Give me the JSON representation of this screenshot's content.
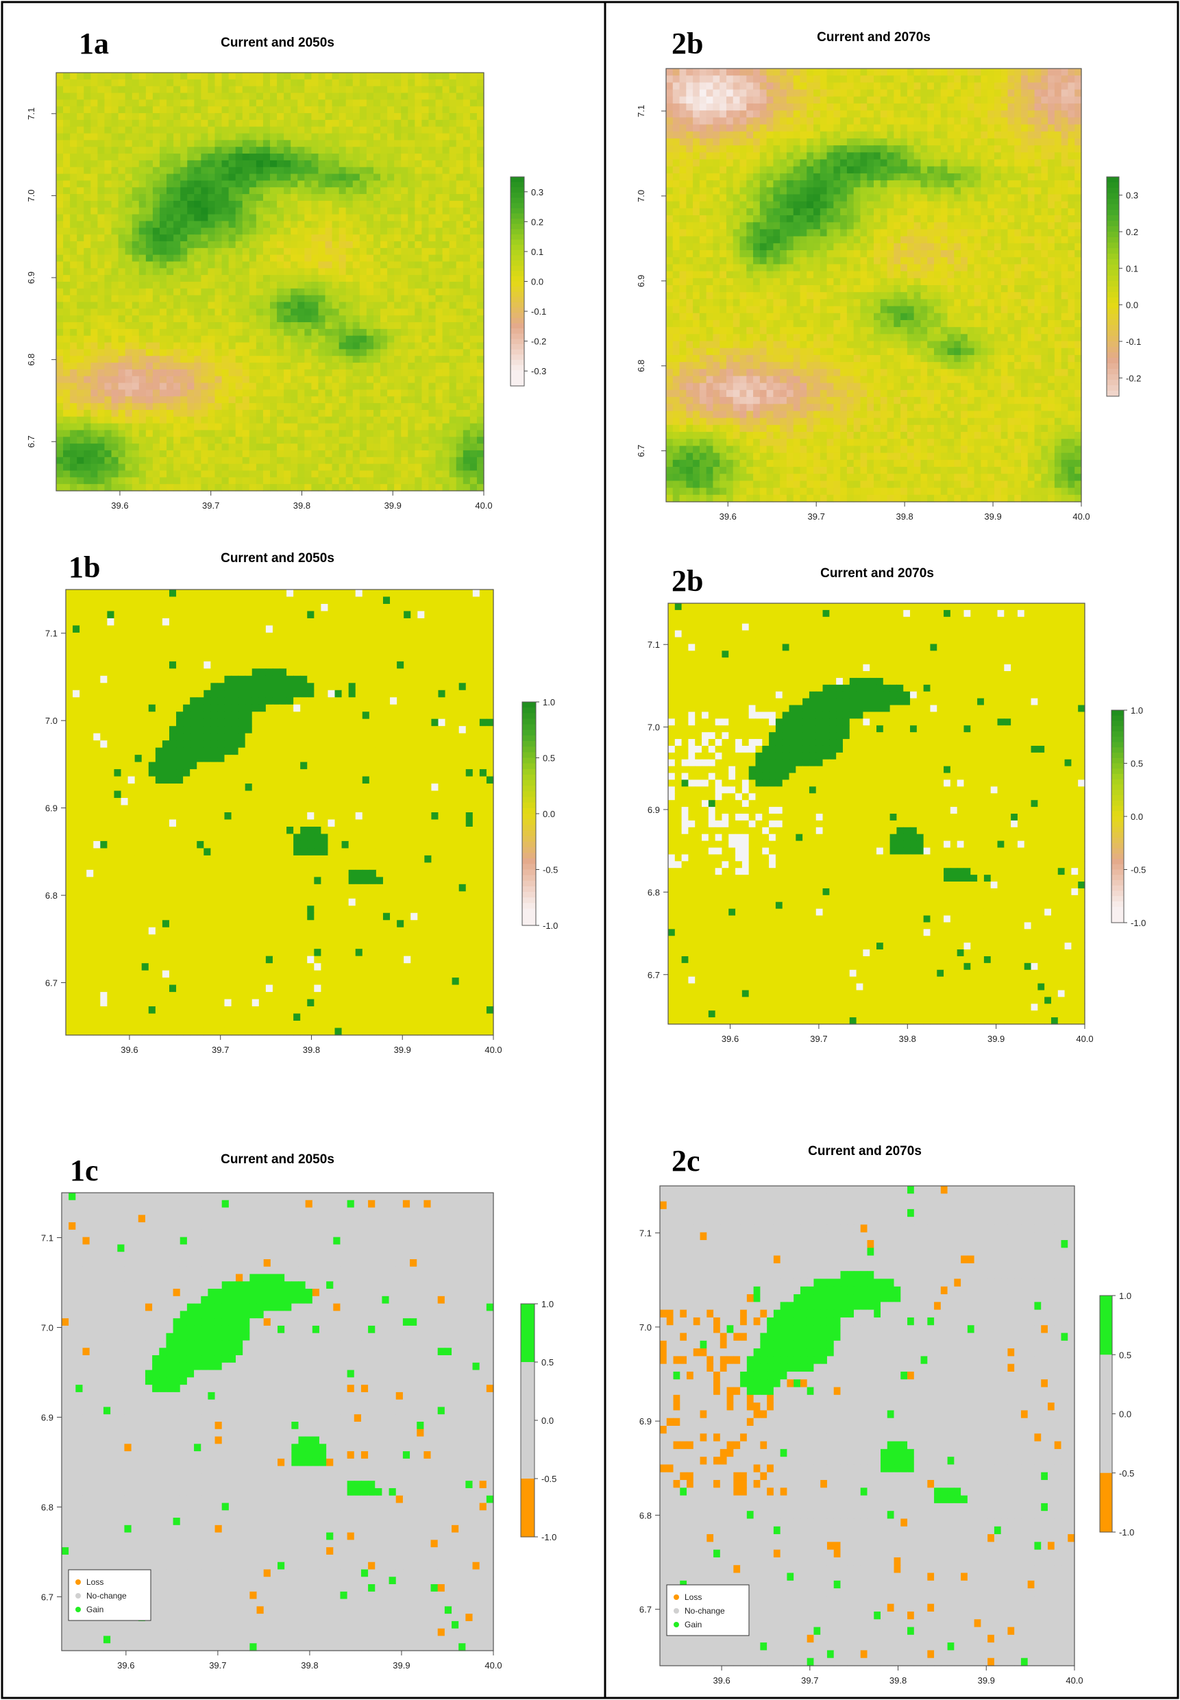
{
  "colors": {
    "panel_border": "#000000",
    "gain_dark": "#1e9a1e",
    "gain_bright": "#22ee22",
    "stable_yellow": "#e6e200",
    "loss_white": "#f4f4f4",
    "loss_orange": "#ff9900",
    "nochange_grey": "#d0d0d0"
  },
  "chart_data": [
    {
      "id": "1a",
      "type": "heatmap",
      "panel_label": "1a",
      "title": "Current and 2050s",
      "x_ticks": [
        "39.6",
        "39.7",
        "39.8",
        "39.9",
        "40.0"
      ],
      "y_ticks": [
        "6.7",
        "6.8",
        "6.9",
        "7.0",
        "7.1"
      ],
      "xlim": [
        39.53,
        40.0
      ],
      "ylim": [
        6.64,
        7.15
      ],
      "colorbar_ticks": [
        "0.3",
        "0.2",
        "0.1",
        "0.0",
        "-0.1",
        "-0.2",
        "-0.3"
      ],
      "colorbar_range": [
        -0.35,
        0.35
      ]
    },
    {
      "id": "2a",
      "type": "heatmap",
      "panel_label": "2b",
      "title": "Current and 2070s",
      "x_ticks": [
        "39.6",
        "39.7",
        "39.8",
        "39.9",
        "40.0"
      ],
      "y_ticks": [
        "6.7",
        "6.8",
        "6.9",
        "7.0",
        "7.1"
      ],
      "xlim": [
        39.53,
        40.0
      ],
      "ylim": [
        6.64,
        7.15
      ],
      "colorbar_ticks": [
        "0.3",
        "0.2",
        "0.1",
        "0.0",
        "-0.1",
        "-0.2"
      ],
      "colorbar_range": [
        -0.25,
        0.35
      ]
    },
    {
      "id": "1b",
      "type": "heatmap",
      "panel_label": "1b",
      "title": "Current and 2050s",
      "x_ticks": [
        "39.6",
        "39.7",
        "39.8",
        "39.9",
        "40.0"
      ],
      "y_ticks": [
        "6.7",
        "6.8",
        "6.9",
        "7.0",
        "7.1"
      ],
      "xlim": [
        39.53,
        40.0
      ],
      "ylim": [
        6.64,
        7.15
      ],
      "colorbar_ticks": [
        "1.0",
        "0.5",
        "0.0",
        "-0.5",
        "-1.0"
      ],
      "colorbar_range": [
        -1,
        1
      ]
    },
    {
      "id": "2b",
      "type": "heatmap",
      "panel_label": "2b",
      "title": "Current and 2070s",
      "x_ticks": [
        "39.6",
        "39.7",
        "39.8",
        "39.9",
        "40.0"
      ],
      "y_ticks": [
        "6.7",
        "6.8",
        "6.9",
        "7.0",
        "7.1"
      ],
      "xlim": [
        39.53,
        40.0
      ],
      "ylim": [
        6.64,
        7.15
      ],
      "colorbar_ticks": [
        "1.0",
        "0.5",
        "0.0",
        "-0.5",
        "-1.0"
      ],
      "colorbar_range": [
        -1,
        1
      ]
    },
    {
      "id": "1c",
      "type": "heatmap",
      "panel_label": "1c",
      "title": "Current and 2050s",
      "x_ticks": [
        "39.6",
        "39.7",
        "39.8",
        "39.9",
        "40.0"
      ],
      "y_ticks": [
        "6.7",
        "6.8",
        "6.9",
        "7.0",
        "7.1"
      ],
      "xlim": [
        39.53,
        40.0
      ],
      "ylim": [
        6.64,
        7.15
      ],
      "colorbar_ticks": [
        "1.0",
        "0.5",
        "0.0",
        "-0.5",
        "-1.0"
      ],
      "colorbar_range": [
        -1,
        1
      ],
      "legend": [
        "Loss",
        "No-change",
        "Gain"
      ],
      "legend_placement": "bottom-left"
    },
    {
      "id": "2c",
      "type": "heatmap",
      "panel_label": "2c",
      "title": "Current and 2070s",
      "x_ticks": [
        "39.6",
        "39.7",
        "39.8",
        "39.9",
        "40.0"
      ],
      "y_ticks": [
        "6.7",
        "6.8",
        "6.9",
        "7.0",
        "7.1"
      ],
      "xlim": [
        39.53,
        40.0
      ],
      "ylim": [
        6.64,
        7.15
      ],
      "colorbar_ticks": [
        "1.0",
        "0.5",
        "0.0",
        "-0.5",
        "-1.0"
      ],
      "colorbar_range": [
        -1,
        1
      ],
      "legend": [
        "Loss",
        "No-change",
        "Gain"
      ],
      "legend_placement": "bottom-left"
    }
  ]
}
